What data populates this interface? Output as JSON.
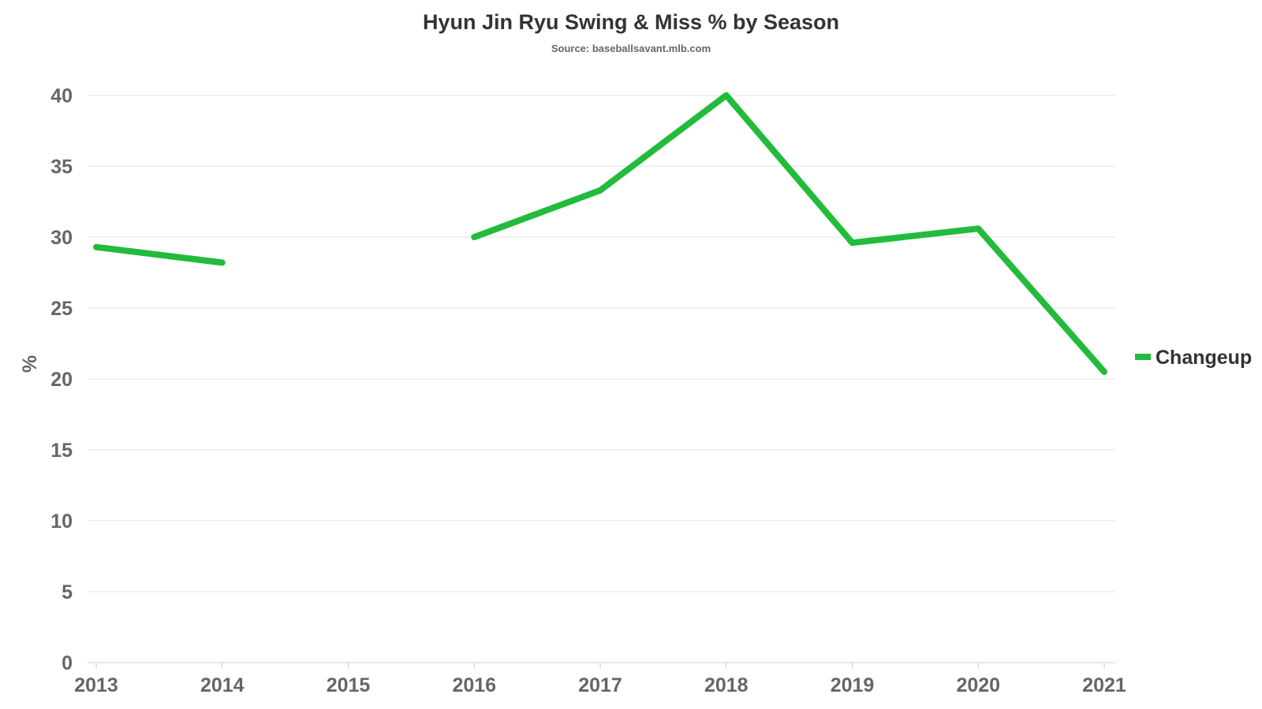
{
  "chart_data": {
    "type": "line",
    "title": "Hyun Jin Ryu Swing & Miss % by Season",
    "subtitle": "Source: baseballsavant.mlb.com",
    "xlabel": "",
    "ylabel": "%",
    "categories": [
      "2013",
      "2014",
      "2015",
      "2016",
      "2017",
      "2018",
      "2019",
      "2020",
      "2021"
    ],
    "series": [
      {
        "name": "Changeup",
        "color": "#22bb3c",
        "values": [
          29.3,
          28.2,
          null,
          30.0,
          33.3,
          40.0,
          29.6,
          30.6,
          20.5
        ]
      }
    ],
    "ylim": [
      0,
      40
    ],
    "yticks": [
      0,
      5,
      10,
      15,
      20,
      25,
      30,
      35,
      40
    ],
    "grid": true,
    "legend_position": "right"
  }
}
